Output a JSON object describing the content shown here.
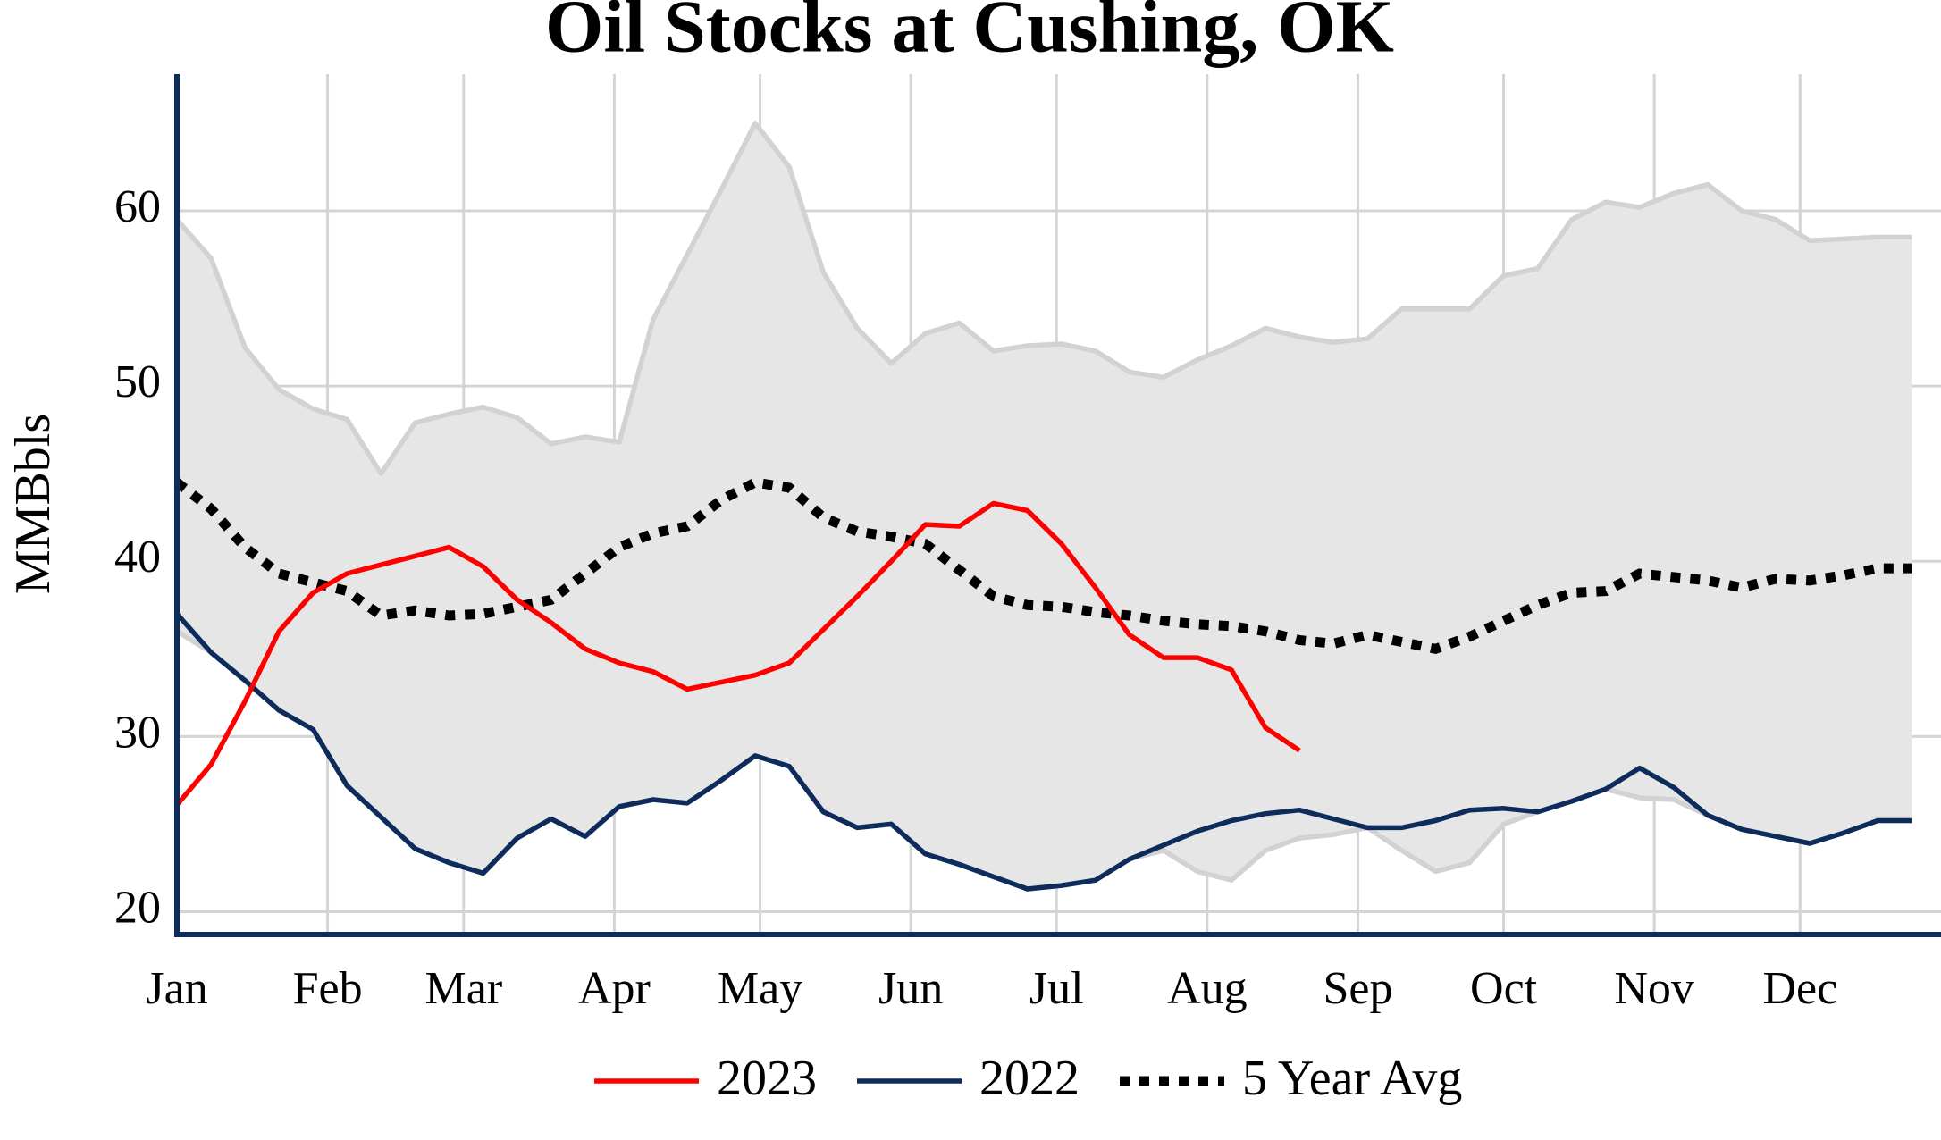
{
  "chart_data": {
    "type": "line",
    "title": "Oil Stocks at Cushing, OK",
    "y_label": "MMBbls",
    "x": [
      0,
      7,
      14,
      21,
      28,
      35,
      42,
      49,
      56,
      63,
      70,
      77,
      84,
      91,
      98,
      105,
      112,
      119,
      126,
      133,
      140,
      147,
      154,
      161,
      168,
      175,
      182,
      189,
      196,
      203,
      210,
      217,
      224,
      231,
      238,
      245,
      252,
      259,
      266,
      273,
      280,
      287,
      294,
      301,
      308,
      315,
      322,
      329,
      336,
      343,
      350,
      357
    ],
    "xlim": [
      0,
      363
    ],
    "xticks": [
      {
        "value": 0,
        "label": "Jan"
      },
      {
        "value": 31,
        "label": "Feb"
      },
      {
        "value": 59,
        "label": "Mar"
      },
      {
        "value": 90,
        "label": "Apr"
      },
      {
        "value": 120,
        "label": "May"
      },
      {
        "value": 151,
        "label": "Jun"
      },
      {
        "value": 181,
        "label": "Jul"
      },
      {
        "value": 212,
        "label": "Aug"
      },
      {
        "value": 243,
        "label": "Sep"
      },
      {
        "value": 273,
        "label": "Oct"
      },
      {
        "value": 304,
        "label": "Nov"
      },
      {
        "value": 334,
        "label": "Dec"
      }
    ],
    "ylim": [
      18.7,
      67.8
    ],
    "yticks": [
      20,
      30,
      40,
      50,
      60
    ],
    "grid": true,
    "band": {
      "color": "#e6e6e6",
      "edge_color": "#d2d2d2",
      "upper": [
        59.5,
        57.3,
        52.2,
        49.8,
        48.7,
        48.1,
        45.0,
        47.9,
        48.4,
        48.8,
        48.2,
        46.7,
        47.1,
        46.8,
        53.8,
        57.5,
        61.2,
        65.0,
        62.5,
        56.5,
        53.3,
        51.3,
        53.0,
        53.6,
        52.0,
        52.3,
        52.4,
        52.0,
        50.8,
        50.5,
        51.5,
        52.3,
        53.3,
        52.8,
        52.5,
        52.7,
        54.4,
        54.4,
        54.4,
        56.3,
        56.7,
        59.5,
        60.5,
        60.2,
        61.0,
        61.5,
        60.0,
        59.5,
        58.3,
        58.4,
        58.5,
        58.5
      ],
      "lower": [
        36.0,
        34.8,
        33.2,
        31.5,
        30.4,
        27.2,
        25.4,
        23.6,
        22.8,
        22.2,
        24.2,
        25.3,
        24.3,
        26.0,
        26.4,
        26.2,
        27.5,
        28.9,
        28.3,
        25.7,
        24.8,
        25.0,
        23.3,
        22.7,
        22.0,
        21.3,
        21.5,
        21.8,
        23.0,
        23.5,
        22.3,
        21.8,
        23.5,
        24.2,
        24.4,
        24.8,
        23.5,
        22.3,
        22.8,
        25.0,
        25.7,
        26.3,
        27.0,
        26.5,
        26.4,
        25.5,
        24.7,
        24.3,
        23.9,
        24.5,
        25.2,
        25.2
      ]
    },
    "series": [
      {
        "name": "2023",
        "color": "#ff0000",
        "style": "solid",
        "values": [
          26.1,
          28.4,
          32.0,
          36.0,
          38.2,
          39.3,
          39.8,
          40.3,
          40.8,
          39.7,
          37.8,
          36.5,
          35.0,
          34.2,
          33.7,
          32.7,
          33.1,
          33.5,
          34.2,
          36.1,
          38.0,
          40.0,
          42.1,
          42.0,
          43.3,
          42.9,
          41.0,
          38.5,
          35.8,
          34.5,
          34.5,
          33.8,
          30.5,
          29.2,
          null,
          null,
          null,
          null,
          null,
          null,
          null,
          null,
          null,
          null,
          null,
          null,
          null,
          null,
          null,
          null,
          null,
          null
        ]
      },
      {
        "name": "2022",
        "color": "#0d2c5c",
        "style": "solid",
        "values": [
          37.0,
          34.8,
          33.2,
          31.5,
          30.4,
          27.2,
          25.4,
          23.6,
          22.8,
          22.2,
          24.2,
          25.3,
          24.3,
          26.0,
          26.4,
          26.2,
          27.5,
          28.9,
          28.3,
          25.7,
          24.8,
          25.0,
          23.3,
          22.7,
          22.0,
          21.3,
          21.5,
          21.8,
          23.0,
          23.8,
          24.6,
          25.2,
          25.6,
          25.8,
          25.3,
          24.8,
          24.8,
          25.2,
          25.8,
          25.9,
          25.7,
          26.3,
          27.0,
          28.2,
          27.1,
          25.5,
          24.7,
          24.3,
          23.9,
          24.5,
          25.2,
          25.2
        ]
      },
      {
        "name": "5 Year Avg",
        "color": "#000000",
        "style": "dotted",
        "values": [
          44.5,
          43.0,
          40.8,
          39.3,
          38.8,
          38.3,
          36.9,
          37.2,
          36.9,
          37.0,
          37.4,
          37.8,
          39.3,
          40.8,
          41.6,
          42.0,
          43.5,
          44.5,
          44.2,
          42.5,
          41.7,
          41.4,
          41.0,
          39.5,
          38.0,
          37.5,
          37.4,
          37.1,
          36.9,
          36.6,
          36.4,
          36.3,
          36.0,
          35.5,
          35.3,
          35.8,
          35.4,
          35.0,
          35.7,
          36.6,
          37.5,
          38.2,
          38.3,
          39.3,
          39.1,
          38.9,
          38.5,
          39.0,
          38.9,
          39.2,
          39.6,
          39.6
        ]
      }
    ]
  }
}
